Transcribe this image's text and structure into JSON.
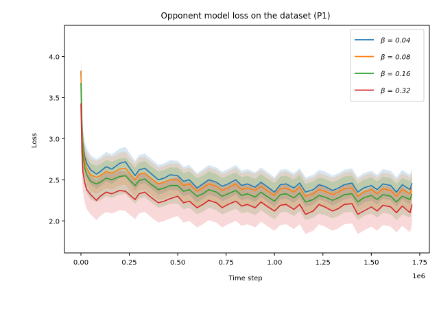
{
  "chart_data": {
    "type": "line",
    "title": "Opponent model loss on the dataset (P1)",
    "xlabel": "Time step",
    "ylabel": "Loss",
    "x_offset_label": "1e6",
    "xlim": [
      -0.085,
      1.8
    ],
    "ylim": [
      1.61,
      4.38
    ],
    "x_ticks": [
      0.0,
      0.25,
      0.5,
      0.75,
      1.0,
      1.25,
      1.5,
      1.75
    ],
    "x_tick_labels": [
      "0.00",
      "0.25",
      "0.50",
      "0.75",
      "1.00",
      "1.25",
      "1.50",
      "1.75"
    ],
    "y_ticks": [
      2.0,
      2.5,
      3.0,
      3.5,
      4.0
    ],
    "y_tick_labels": [
      "2.0",
      "2.5",
      "3.0",
      "3.5",
      "4.0"
    ],
    "grid": false,
    "legend_position": "top-right",
    "x": [
      0.0,
      0.005,
      0.01,
      0.02,
      0.03,
      0.05,
      0.08,
      0.1,
      0.13,
      0.16,
      0.2,
      0.23,
      0.25,
      0.28,
      0.3,
      0.33,
      0.36,
      0.4,
      0.43,
      0.46,
      0.5,
      0.53,
      0.56,
      0.6,
      0.63,
      0.66,
      0.7,
      0.73,
      0.76,
      0.8,
      0.83,
      0.86,
      0.9,
      0.93,
      0.96,
      1.0,
      1.03,
      1.06,
      1.1,
      1.13,
      1.16,
      1.2,
      1.23,
      1.26,
      1.3,
      1.33,
      1.36,
      1.4,
      1.43,
      1.46,
      1.5,
      1.53,
      1.56,
      1.6,
      1.63,
      1.66,
      1.7,
      1.71
    ],
    "series": [
      {
        "name": "β = 0.04",
        "legend_label": "β = 0.04",
        "color": "#1f77b4",
        "values": [
          3.82,
          3.2,
          2.95,
          2.78,
          2.7,
          2.62,
          2.57,
          2.6,
          2.66,
          2.63,
          2.7,
          2.72,
          2.65,
          2.55,
          2.62,
          2.64,
          2.58,
          2.5,
          2.52,
          2.56,
          2.55,
          2.48,
          2.5,
          2.4,
          2.45,
          2.5,
          2.47,
          2.42,
          2.45,
          2.5,
          2.43,
          2.45,
          2.41,
          2.47,
          2.42,
          2.35,
          2.44,
          2.45,
          2.4,
          2.46,
          2.35,
          2.38,
          2.44,
          2.42,
          2.37,
          2.4,
          2.44,
          2.46,
          2.35,
          2.4,
          2.43,
          2.38,
          2.45,
          2.43,
          2.35,
          2.44,
          2.38,
          2.46
        ],
        "band": 0.18
      },
      {
        "name": "β = 0.08",
        "legend_label": "β = 0.08",
        "color": "#ff7f0e",
        "values": [
          3.83,
          3.15,
          2.9,
          2.72,
          2.64,
          2.56,
          2.53,
          2.55,
          2.6,
          2.58,
          2.63,
          2.64,
          2.58,
          2.5,
          2.57,
          2.58,
          2.52,
          2.45,
          2.47,
          2.5,
          2.5,
          2.43,
          2.45,
          2.36,
          2.4,
          2.45,
          2.42,
          2.37,
          2.4,
          2.45,
          2.38,
          2.4,
          2.37,
          2.42,
          2.37,
          2.31,
          2.39,
          2.4,
          2.35,
          2.41,
          2.3,
          2.33,
          2.38,
          2.36,
          2.32,
          2.35,
          2.39,
          2.4,
          2.3,
          2.35,
          2.38,
          2.33,
          2.39,
          2.37,
          2.3,
          2.38,
          2.33,
          2.4
        ],
        "band": 0.2
      },
      {
        "name": "β = 0.16",
        "legend_label": "β = 0.16",
        "color": "#2ca02c",
        "values": [
          3.68,
          3.05,
          2.8,
          2.64,
          2.56,
          2.48,
          2.45,
          2.47,
          2.52,
          2.5,
          2.54,
          2.55,
          2.5,
          2.43,
          2.49,
          2.51,
          2.45,
          2.38,
          2.4,
          2.43,
          2.43,
          2.36,
          2.38,
          2.3,
          2.33,
          2.38,
          2.35,
          2.3,
          2.33,
          2.37,
          2.31,
          2.33,
          2.29,
          2.35,
          2.3,
          2.24,
          2.32,
          2.33,
          2.28,
          2.34,
          2.23,
          2.26,
          2.31,
          2.29,
          2.25,
          2.28,
          2.32,
          2.33,
          2.23,
          2.28,
          2.31,
          2.26,
          2.32,
          2.3,
          2.23,
          2.3,
          2.26,
          2.33
        ],
        "band": 0.22
      },
      {
        "name": "β = 0.32",
        "legend_label": "β = 0.32",
        "color": "#d62728",
        "values": [
          3.43,
          2.85,
          2.6,
          2.46,
          2.38,
          2.32,
          2.25,
          2.3,
          2.35,
          2.33,
          2.37,
          2.36,
          2.32,
          2.26,
          2.33,
          2.35,
          2.29,
          2.22,
          2.24,
          2.27,
          2.3,
          2.22,
          2.24,
          2.16,
          2.2,
          2.25,
          2.22,
          2.16,
          2.2,
          2.24,
          2.18,
          2.2,
          2.16,
          2.23,
          2.18,
          2.12,
          2.19,
          2.2,
          2.14,
          2.2,
          2.08,
          2.12,
          2.2,
          2.17,
          2.12,
          2.15,
          2.2,
          2.21,
          2.08,
          2.12,
          2.17,
          2.12,
          2.19,
          2.17,
          2.1,
          2.18,
          2.1,
          2.2
        ],
        "band": 0.24
      }
    ]
  }
}
